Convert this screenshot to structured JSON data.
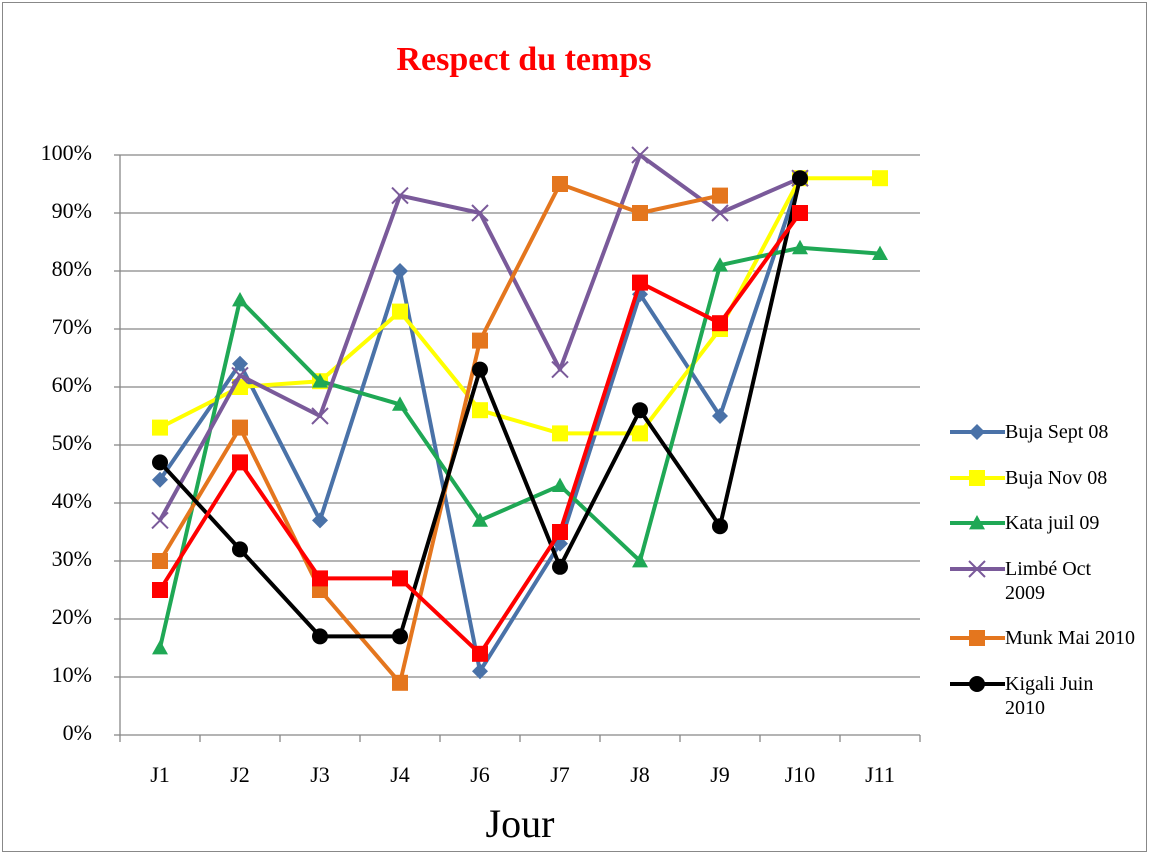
{
  "chart_data": {
    "type": "line",
    "title": "Respect du temps",
    "x_label": "Jour",
    "categories": [
      "J1",
      "J2",
      "J3",
      "J4",
      "J6",
      "J7",
      "J8",
      "J9",
      "J10",
      "J11"
    ],
    "ylim": [
      0,
      100
    ],
    "yticks": [
      {
        "value": 0,
        "label": "0%"
      },
      {
        "value": 10,
        "label": "10%"
      },
      {
        "value": 20,
        "label": "20%"
      },
      {
        "value": 30,
        "label": "30%"
      },
      {
        "value": 40,
        "label": "40%"
      },
      {
        "value": 50,
        "label": "50%"
      },
      {
        "value": 60,
        "label": "60%"
      },
      {
        "value": 70,
        "label": "70%"
      },
      {
        "value": 80,
        "label": "80%"
      },
      {
        "value": 90,
        "label": "90%"
      },
      {
        "value": 100,
        "label": "100%"
      }
    ],
    "grid": true,
    "legend": "right",
    "series": [
      {
        "name": "Buja Sept 08",
        "color": "#4a72a8",
        "marker": "diamond",
        "values": [
          44,
          64,
          37,
          80,
          11,
          33,
          76,
          55,
          96,
          null
        ]
      },
      {
        "name": "Buja Nov 08",
        "color": "#ffff00",
        "marker": "square",
        "values": [
          53,
          60,
          61,
          73,
          56,
          52,
          52,
          70,
          96,
          96
        ]
      },
      {
        "name": "Kata juil 09",
        "color": "#1fa855",
        "marker": "triangle",
        "values": [
          15,
          75,
          61,
          57,
          37,
          43,
          30,
          81,
          84,
          83
        ]
      },
      {
        "name": "Limbé Oct 2009",
        "color": "#7a5a9a",
        "marker": "x",
        "values": [
          37,
          62,
          55,
          93,
          90,
          63,
          100,
          90,
          96,
          null
        ]
      },
      {
        "name": "Munk Mai 2010",
        "color": "#e4761e",
        "marker": "square",
        "values": [
          30,
          53,
          25,
          9,
          68,
          95,
          90,
          93,
          null,
          null
        ]
      },
      {
        "name": "Kigali Juin 2010",
        "color": "#000000",
        "marker": "circle",
        "values": [
          47,
          32,
          17,
          17,
          63,
          29,
          56,
          36,
          96,
          null
        ]
      },
      {
        "color": "#ff0000",
        "marker": "square",
        "values": [
          25,
          47,
          27,
          27,
          14,
          35,
          78,
          71,
          90,
          null
        ]
      }
    ]
  }
}
